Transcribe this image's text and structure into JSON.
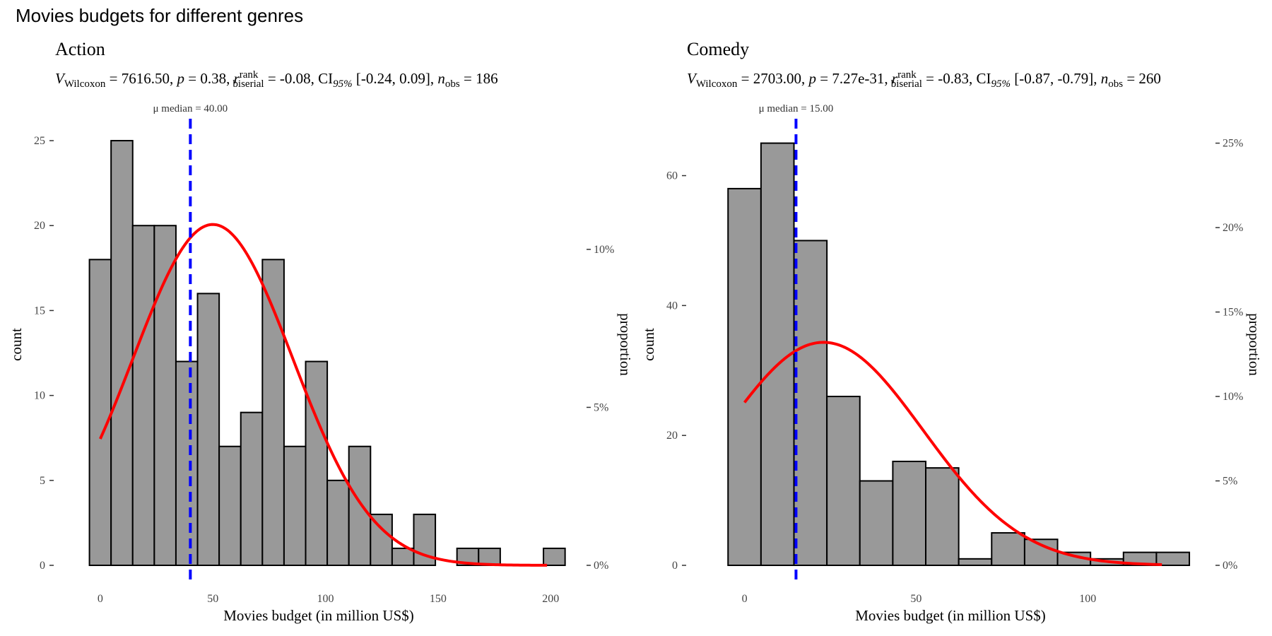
{
  "figure_title": "Movies budgets for different genres",
  "chart_data": [
    {
      "type": "bar",
      "title": "Action",
      "stat": {
        "V": "7616.50",
        "p": "0.38",
        "r": "-0.08",
        "ci": "[-0.24, 0.09]",
        "n": "186",
        "sym_V": "V",
        "sub_V": "Wilcoxon",
        "sym_p": "p",
        "sym_r": "r",
        "sup_r": "rank",
        "sub_r": "biserial",
        "sym_ci": "CI",
        "sub_ci": "95%",
        "sym_n": "n",
        "sub_n": "obs"
      },
      "median_label": "μ median = 40.00",
      "median_value": 40,
      "xlabel": "Movies budget (in million US$)",
      "ylabel": "count",
      "y2label": "proportion",
      "bin_width": 9.6,
      "bin_start": -4.8,
      "counts": [
        18,
        25,
        20,
        20,
        12,
        16,
        7,
        9,
        18,
        7,
        12,
        5,
        7,
        3,
        1,
        3,
        0,
        1,
        1,
        0,
        0,
        1
      ],
      "xlim": [
        -10,
        204
      ],
      "ylim": [
        0,
        26
      ],
      "xticks": [
        0,
        50,
        100,
        150,
        200
      ],
      "yticks": [
        0,
        5,
        10,
        15,
        20,
        25
      ],
      "y2ticks": [
        {
          "label": "0%",
          "value": 0
        },
        {
          "label": "5%",
          "value": 0.05
        },
        {
          "label": "10%",
          "value": 0.1
        }
      ],
      "y2_scale": 186,
      "normal_curve": {
        "mean": 50,
        "sd": 35.5
      }
    },
    {
      "type": "bar",
      "title": "Comedy",
      "stat": {
        "V": "2703.00",
        "p": "7.27e-31",
        "r": "-0.83",
        "ci": "[-0.87, -0.79]",
        "n": "260",
        "sym_V": "V",
        "sub_V": "Wilcoxon",
        "sym_p": "p",
        "sym_r": "r",
        "sup_r": "rank",
        "sub_r": "biserial",
        "sym_ci": "CI",
        "sub_ci": "95%",
        "sym_n": "n",
        "sub_n": "obs"
      },
      "median_label": "μ median = 15.00",
      "median_value": 15,
      "xlabel": "Movies budget (in million US$)",
      "ylabel": "count",
      "y2label": "proportion",
      "bin_width": 9.6,
      "bin_start": -4.8,
      "counts": [
        58,
        65,
        50,
        26,
        13,
        16,
        15,
        1,
        5,
        4,
        2,
        1,
        2,
        2
      ],
      "xlim": [
        -10,
        130
      ],
      "ylim": [
        0,
        68
      ],
      "xticks": [
        0,
        50,
        100
      ],
      "yticks": [
        0,
        20,
        40,
        60
      ],
      "y2ticks": [
        {
          "label": "0%",
          "value": 0
        },
        {
          "label": "5%",
          "value": 0.05
        },
        {
          "label": "10%",
          "value": 0.1
        },
        {
          "label": "15%",
          "value": 0.15
        },
        {
          "label": "20%",
          "value": 0.2
        },
        {
          "label": "25%",
          "value": 0.25
        }
      ],
      "y2_scale": 260,
      "normal_curve": {
        "mean": 23,
        "sd": 29
      }
    }
  ],
  "colors": {
    "bar_fill": "#999999",
    "bar_stroke": "#000000",
    "median_line": "#0000ff",
    "curve": "#ff0000"
  }
}
